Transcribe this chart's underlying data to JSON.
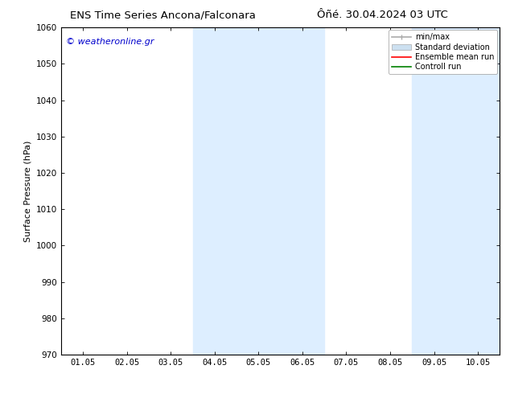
{
  "title_left": "ENS Time Series Ancona/Falconara",
  "title_right": "Ôñé. 30.04.2024 03 UTC",
  "ylabel": "Surface Pressure (hPa)",
  "ylim": [
    970,
    1060
  ],
  "yticks": [
    970,
    980,
    990,
    1000,
    1010,
    1020,
    1030,
    1040,
    1050,
    1060
  ],
  "xtick_labels": [
    "01.05",
    "02.05",
    "03.05",
    "04.05",
    "05.05",
    "06.05",
    "07.05",
    "08.05",
    "09.05",
    "10.05"
  ],
  "watermark": "© weatheronline.gr",
  "watermark_color": "#0000cc",
  "bg_color": "#ffffff",
  "plot_bg_color": "#ffffff",
  "shade_regions": [
    {
      "xstart": 3,
      "xend": 5,
      "color": "#ddeeff"
    },
    {
      "xstart": 8,
      "xend": 9,
      "color": "#ddeeff"
    }
  ],
  "title_fontsize": 9.5,
  "tick_fontsize": 7.5,
  "ylabel_fontsize": 8,
  "watermark_fontsize": 8,
  "legend_fontsize": 7,
  "border_color": "#000000",
  "shade_color": "#ddeeff",
  "minmax_color": "#aaaaaa",
  "std_color": "#cce0f0",
  "ensemble_color": "#ff0000",
  "control_color": "#008000"
}
